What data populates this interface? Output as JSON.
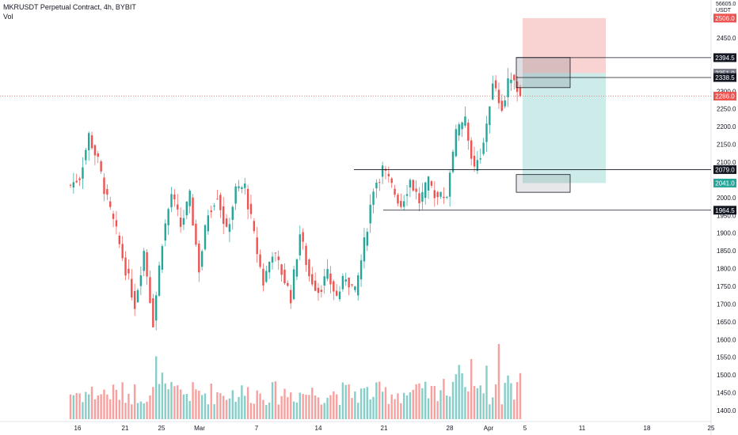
{
  "header": {
    "title": "MKRUSDT Perpetual Contract, 4h, BYBIT",
    "volume_label": "Vol"
  },
  "axis": {
    "unit_line1": "56605.0",
    "unit_line2": "USDT",
    "price_ticks": [
      "2450.0",
      "2400.0",
      "2300.0",
      "2250.0",
      "2200.0",
      "2150.0",
      "2100.0",
      "2000.0",
      "1950.0",
      "1900.0",
      "1850.0",
      "1800.0",
      "1750.0",
      "1700.0",
      "1650.0",
      "1600.0",
      "1550.0",
      "1500.0",
      "1450.0",
      "1400.0"
    ],
    "date_ticks": [
      "16",
      "21",
      "25",
      "Mar",
      "7",
      "14",
      "21",
      "28",
      "Apr",
      "5",
      "11",
      "18",
      "25"
    ]
  },
  "chart_data": {
    "type": "candlestick",
    "title": "MKRUSDT Perpetual Contract, 4h, BYBIT",
    "ylim": [
      1390,
      2520
    ],
    "x_labels": [
      "16",
      "21",
      "25",
      "Mar",
      "7",
      "14",
      "21",
      "28",
      "Apr",
      "5",
      "11",
      "18",
      "25"
    ],
    "last_price": 2286.0,
    "levels": [
      {
        "label": "2394.5",
        "value": 2394.5
      },
      {
        "label": "2338.5",
        "value": 2338.5
      },
      {
        "label": "2079.0",
        "value": 2079.0
      },
      {
        "label": "1964.5",
        "value": 1964.5
      }
    ],
    "position": {
      "entry_label": "2351.0",
      "entry": 2351.0,
      "stop_label": "2506.0",
      "stop": 2506.0,
      "target_label": "2041.0",
      "target": 2041.0,
      "current_label": "2286.0",
      "current": 2286.0
    },
    "zones": [
      {
        "from": 2310,
        "to": 2395
      },
      {
        "from": 2015,
        "to": 2065
      }
    ],
    "candle_path_control_points": [
      [
        2035,
        2025
      ],
      [
        2060,
        2040
      ],
      [
        2175,
        2150
      ],
      [
        2100,
        2060
      ],
      [
        1990,
        1980
      ],
      [
        1900,
        1870
      ],
      [
        1800,
        1780
      ],
      [
        1700,
        1650
      ],
      [
        1850,
        1810
      ],
      [
        1650,
        1560
      ],
      [
        1880,
        1860
      ],
      [
        2010,
        1990
      ],
      [
        1920,
        1900
      ],
      [
        2000,
        1980
      ],
      [
        1800,
        1760
      ],
      [
        1960,
        1930
      ],
      [
        2010,
        1990
      ],
      [
        1900,
        1870
      ],
      [
        2020,
        2000
      ],
      [
        2030,
        2010
      ],
      [
        1890,
        1870
      ],
      [
        1760,
        1740
      ],
      [
        1850,
        1830
      ],
      [
        1790,
        1760
      ],
      [
        1720,
        1700
      ],
      [
        1900,
        1880
      ],
      [
        1780,
        1760
      ],
      [
        1740,
        1720
      ],
      [
        1780,
        1760
      ],
      [
        1720,
        1700
      ],
      [
        1780,
        1760
      ],
      [
        1730,
        1720
      ],
      [
        1870,
        1840
      ],
      [
        2030,
        2000
      ],
      [
        2080,
        2060
      ],
      [
        2030,
        2010
      ],
      [
        1980,
        1975
      ],
      [
        2050,
        2030
      ],
      [
        1990,
        1975
      ],
      [
        2040,
        2020
      ],
      [
        2000,
        1990
      ],
      [
        2010,
        1990
      ],
      [
        2180,
        2150
      ],
      [
        2210,
        2200
      ],
      [
        2080,
        2060
      ],
      [
        2150,
        2130
      ],
      [
        2330,
        2300
      ],
      [
        2250,
        2230
      ],
      [
        2350,
        2330
      ],
      [
        2290,
        2270
      ]
    ]
  },
  "colors": {
    "up": "#26a69a",
    "down": "#ef5350",
    "up_vol": "#26a69a",
    "down_vol": "#ef5350",
    "stop_zone": "#f9d3d2",
    "target_zone": "#cdebe8",
    "stop_tag": "#ef5350",
    "target_tag": "#26a69a",
    "entry_tag": "#787b86",
    "current_tag": "#ef5350",
    "level_tag": "#131722"
  }
}
